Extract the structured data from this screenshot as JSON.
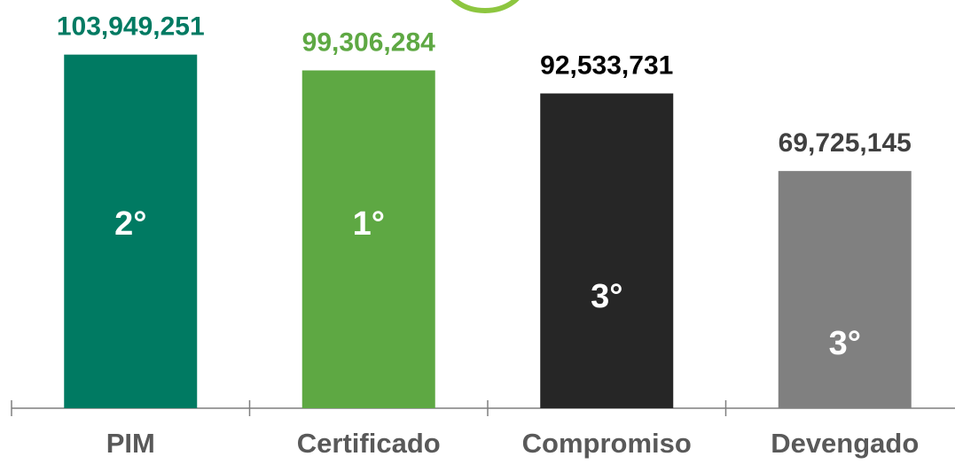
{
  "chart_data": {
    "type": "bar",
    "categories": [
      "PIM",
      "Certificado",
      "Compromiso",
      "Devengado"
    ],
    "values": [
      103949251,
      99306284,
      92533731,
      69725145
    ],
    "value_labels": [
      "103,949,251",
      "99,306,284",
      "92,533,731",
      "69,725,145"
    ],
    "ranks": [
      "2°",
      "1°",
      "3°",
      "3°"
    ],
    "colors": [
      "#007a62",
      "#5ea843",
      "#262626",
      "#808080"
    ],
    "label_colors": [
      "#007a62",
      "#5ea843",
      "#000000",
      "#404040"
    ],
    "ylim": [
      0,
      120000000
    ]
  }
}
